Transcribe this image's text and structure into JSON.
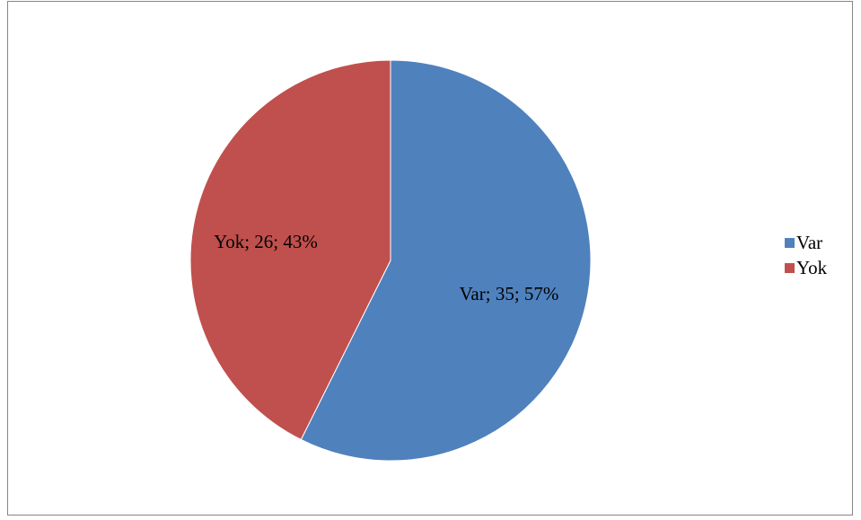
{
  "chart_data": {
    "type": "pie",
    "categories": [
      "Var",
      "Yok"
    ],
    "values": [
      35,
      26
    ],
    "percentages": [
      57,
      43
    ],
    "colors": [
      "#4F81BD",
      "#C0504D"
    ],
    "data_labels": [
      "Var; 35; 57%",
      "Yok; 26; 43%"
    ],
    "legend_position": "right",
    "title": ""
  },
  "legend": {
    "items": [
      {
        "label": "Var",
        "color": "#4F81BD"
      },
      {
        "label": "Yok",
        "color": "#C0504D"
      }
    ]
  }
}
